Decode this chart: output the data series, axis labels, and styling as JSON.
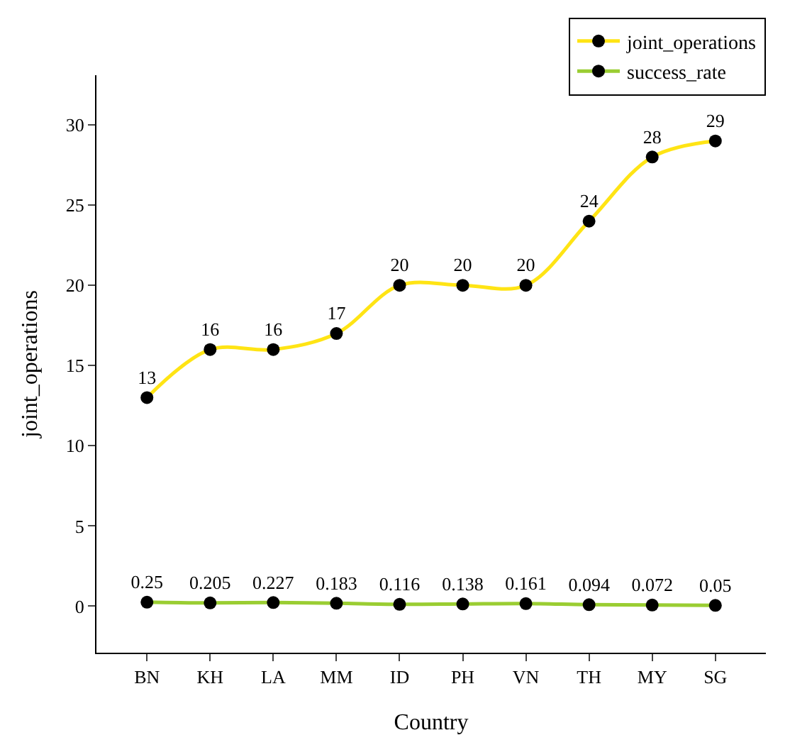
{
  "chart_data": {
    "type": "line",
    "xlabel": "Country",
    "ylabel": "joint_operations",
    "categories": [
      "BN",
      "KH",
      "LA",
      "MM",
      "ID",
      "PH",
      "VN",
      "TH",
      "MY",
      "SG"
    ],
    "series": [
      {
        "name": "joint_operations",
        "color": "#ffe414",
        "values": [
          13,
          16,
          16,
          17,
          20,
          20,
          20,
          24,
          28,
          29
        ]
      },
      {
        "name": "success_rate",
        "color": "#9acd32",
        "values": [
          0.25,
          0.205,
          0.227,
          0.183,
          0.116,
          0.138,
          0.161,
          0.094,
          0.072,
          0.05
        ]
      }
    ],
    "ylim": [
      -2.9,
      33.1
    ],
    "yticks": [
      0,
      5,
      10,
      15,
      20,
      25,
      30
    ],
    "grid": false,
    "legend": "top right",
    "marker": "circle",
    "line_style": "solid",
    "data_labels": true
  }
}
